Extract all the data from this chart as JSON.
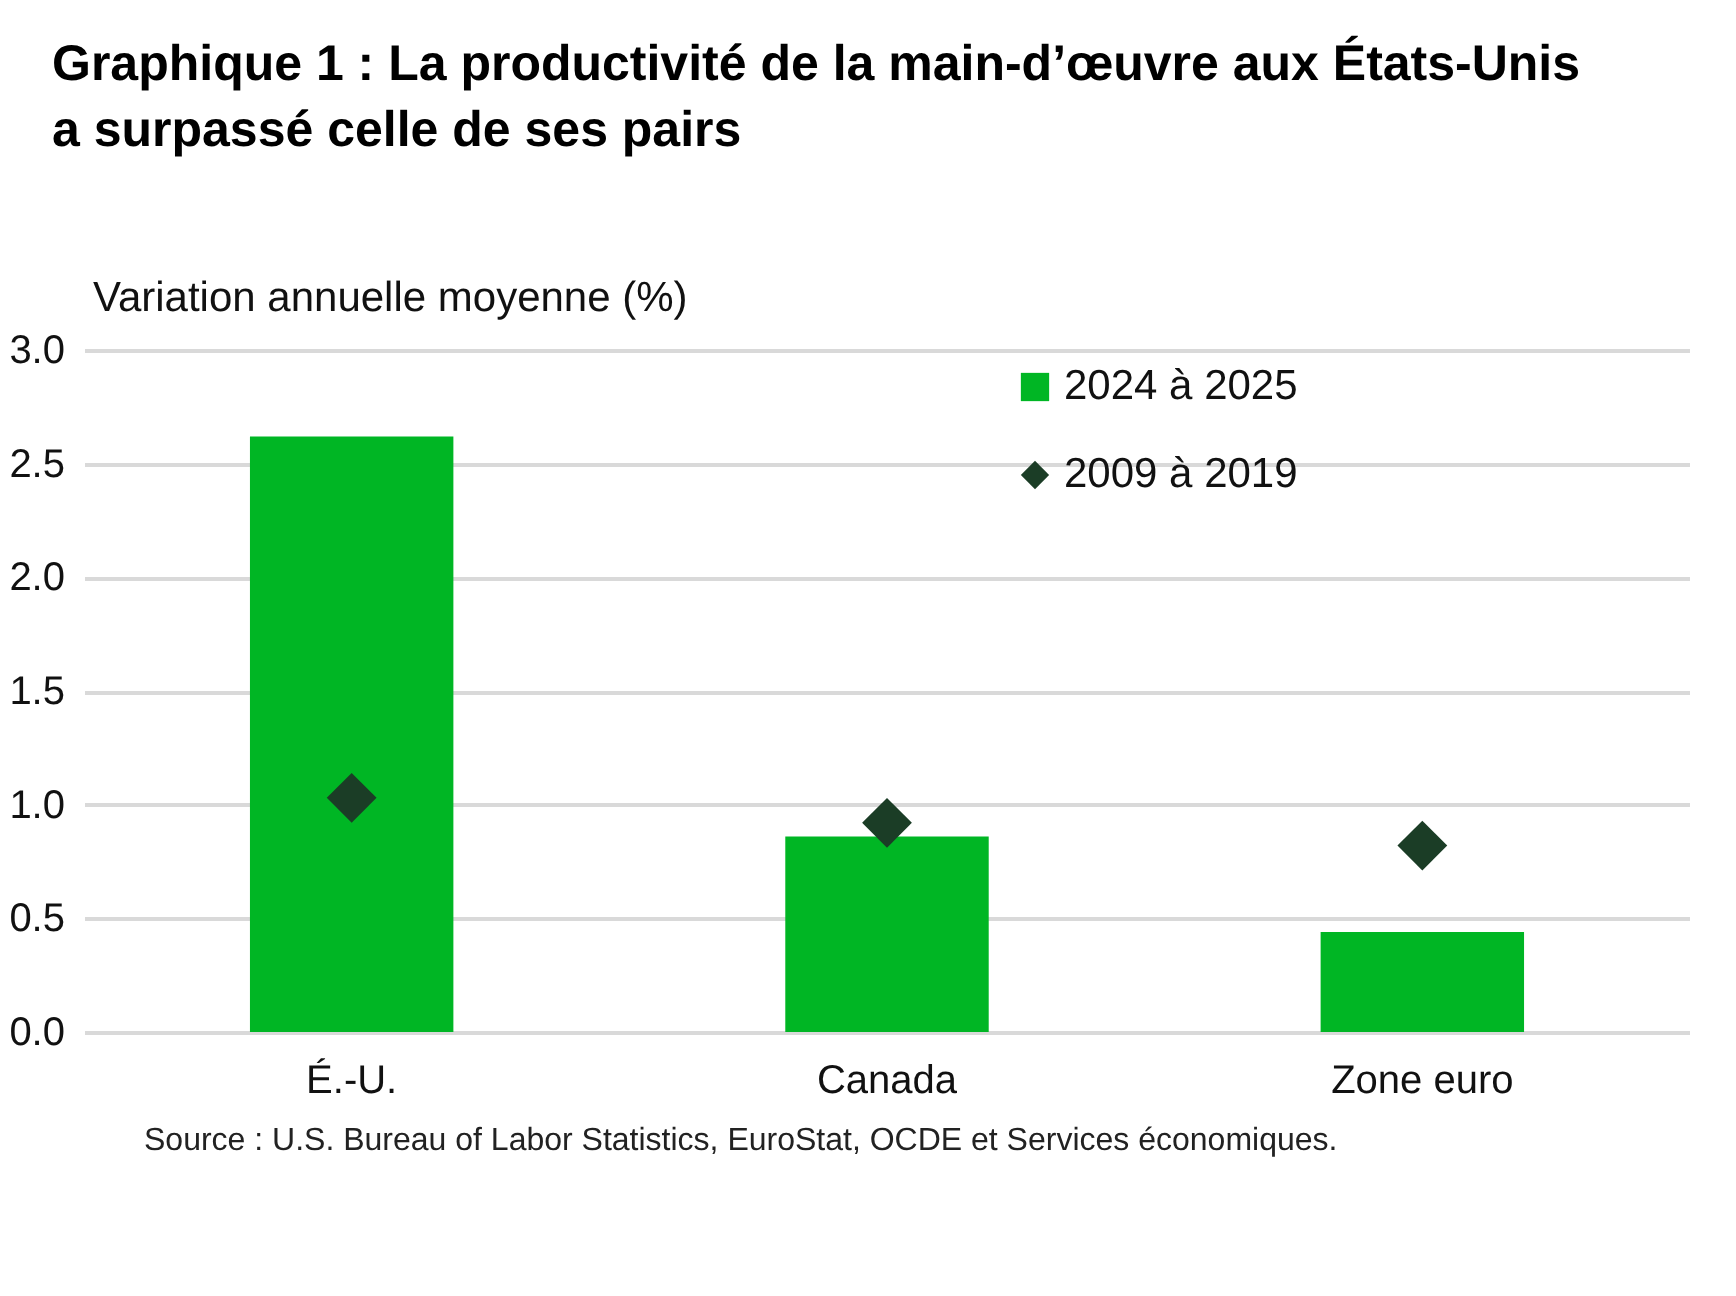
{
  "chart_data": {
    "type": "bar",
    "title": "Graphique 1 : La productivité de la main-d’œuvre aux États-Unis a surpassé celle de ses pairs",
    "ylabel": "Variation annuelle moyenne (%)",
    "categories": [
      "É.-U.",
      "Canada",
      "Zone euro"
    ],
    "series": [
      {
        "name": "2024 à 2025",
        "color": "#00b624",
        "values": [
          2.62,
          0.86,
          0.44
        ]
      },
      {
        "name": "2009 à 2019",
        "type": "scatter",
        "marker": "diamond",
        "color": "#1b3d26",
        "values": [
          1.03,
          0.92,
          0.82
        ]
      }
    ],
    "ylim": [
      0,
      3
    ],
    "yticks": [
      {
        "value": 0,
        "label": "0.0"
      },
      {
        "value": 0.5,
        "label": "0.5"
      },
      {
        "value": 1,
        "label": "1.0"
      },
      {
        "value": 1.5,
        "label": "1.5"
      },
      {
        "value": 2,
        "label": "2.0"
      },
      {
        "value": 2.5,
        "label": "2.5"
      },
      {
        "value": 3,
        "label": "3.0"
      }
    ],
    "grid": "y",
    "legend": "top right",
    "annotations": [
      "Source : U.S. Bureau of Labor Statistics, EuroStat, OCDE et Services économiques."
    ]
  }
}
